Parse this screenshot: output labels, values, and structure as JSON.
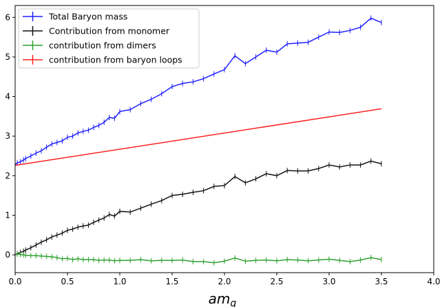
{
  "chart_data": {
    "type": "line",
    "title": "",
    "xlabel": "am",
    "xlabel_sub": "q",
    "ylabel": "",
    "xlim": [
      0.0,
      4.0
    ],
    "ylim": [
      -0.45,
      6.3
    ],
    "xticks": [
      0.0,
      0.5,
      1.0,
      1.5,
      2.0,
      2.5,
      3.0,
      3.5,
      4.0
    ],
    "xtick_labels": [
      "0.0",
      "0.5",
      "1.0",
      "1.5",
      "2.0",
      "2.5",
      "3.0",
      "3.5",
      "4.0"
    ],
    "yticks": [
      0,
      1,
      2,
      3,
      4,
      5,
      6
    ],
    "ytick_labels": [
      "0",
      "1",
      "2",
      "3",
      "4",
      "5",
      "6"
    ],
    "grid": false,
    "legend_position": "top-left",
    "x": [
      0.0,
      0.02,
      0.05,
      0.08,
      0.1,
      0.15,
      0.2,
      0.25,
      0.3,
      0.35,
      0.4,
      0.45,
      0.5,
      0.55,
      0.6,
      0.65,
      0.7,
      0.75,
      0.8,
      0.85,
      0.9,
      0.95,
      1.0,
      1.1,
      1.2,
      1.3,
      1.4,
      1.5,
      1.6,
      1.7,
      1.8,
      1.9,
      2.0,
      2.1,
      2.2,
      2.3,
      2.4,
      2.5,
      2.6,
      2.7,
      2.8,
      2.9,
      3.0,
      3.1,
      3.2,
      3.3,
      3.4,
      3.5
    ],
    "series": [
      {
        "name": "Total Baryon mass",
        "color": "#1f1fff",
        "errorbars": true,
        "values": [
          2.28,
          2.32,
          2.35,
          2.4,
          2.43,
          2.5,
          2.57,
          2.63,
          2.72,
          2.8,
          2.84,
          2.88,
          2.97,
          3.0,
          3.08,
          3.12,
          3.15,
          3.22,
          3.27,
          3.35,
          3.47,
          3.45,
          3.62,
          3.67,
          3.82,
          3.93,
          4.07,
          4.25,
          4.33,
          4.37,
          4.45,
          4.57,
          4.68,
          5.03,
          4.83,
          5.0,
          5.17,
          5.12,
          5.33,
          5.35,
          5.37,
          5.5,
          5.63,
          5.62,
          5.67,
          5.75,
          5.98,
          5.87
        ]
      },
      {
        "name": "Contribution from monomer",
        "color": "#111111",
        "errorbars": true,
        "values": [
          0.0,
          0.03,
          0.06,
          0.09,
          0.12,
          0.18,
          0.25,
          0.32,
          0.38,
          0.45,
          0.5,
          0.55,
          0.62,
          0.65,
          0.7,
          0.73,
          0.75,
          0.82,
          0.88,
          0.93,
          1.02,
          0.98,
          1.1,
          1.08,
          1.18,
          1.28,
          1.37,
          1.5,
          1.53,
          1.58,
          1.62,
          1.73,
          1.75,
          1.98,
          1.82,
          1.92,
          2.05,
          2.0,
          2.13,
          2.12,
          2.12,
          2.18,
          2.27,
          2.22,
          2.27,
          2.27,
          2.37,
          2.3
        ]
      },
      {
        "name": "contribution from dimers",
        "color": "#2ca02c",
        "errorbars": true,
        "values": [
          0.0,
          0.02,
          0.01,
          0.0,
          -0.01,
          -0.02,
          -0.02,
          -0.03,
          -0.04,
          -0.05,
          -0.07,
          -0.1,
          -0.09,
          -0.12,
          -0.1,
          -0.12,
          -0.12,
          -0.12,
          -0.14,
          -0.13,
          -0.13,
          -0.15,
          -0.14,
          -0.14,
          -0.12,
          -0.15,
          -0.14,
          -0.14,
          -0.13,
          -0.17,
          -0.17,
          -0.2,
          -0.16,
          -0.08,
          -0.16,
          -0.14,
          -0.13,
          -0.15,
          -0.12,
          -0.13,
          -0.15,
          -0.13,
          -0.11,
          -0.14,
          -0.17,
          -0.13,
          -0.07,
          -0.12
        ]
      },
      {
        "name": "contribution from baryon loops",
        "color": "#ff2020",
        "errorbars": false,
        "x": [
          0.0,
          3.5
        ],
        "values": [
          2.26,
          3.69
        ]
      }
    ]
  }
}
